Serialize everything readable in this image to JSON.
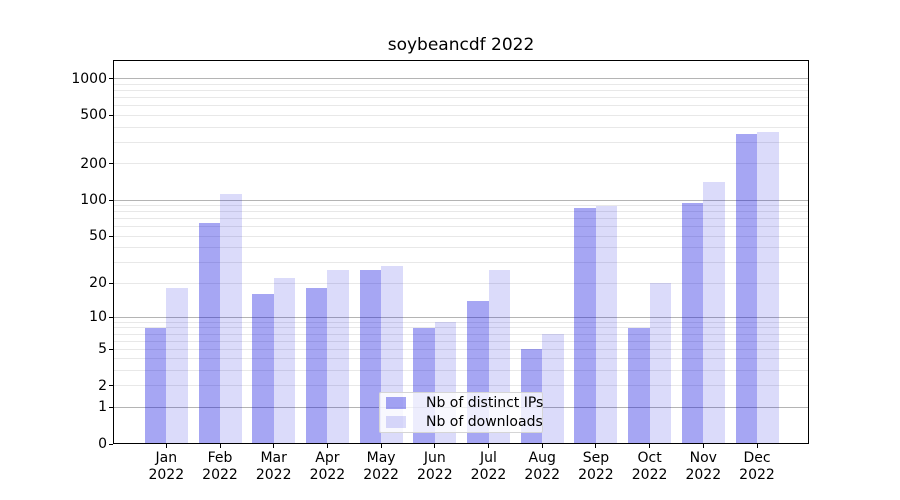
{
  "chart_data": {
    "type": "bar",
    "title": "soybeancdf 2022",
    "categories": [
      "Jan 2022",
      "Feb 2022",
      "Mar 2022",
      "Apr 2022",
      "May 2022",
      "Jun 2022",
      "Jul 2022",
      "Aug 2022",
      "Sep 2022",
      "Oct 2022",
      "Nov 2022",
      "Dec 2022"
    ],
    "series": [
      {
        "key": "distinct-ips",
        "name": "Nb of distinct IPs",
        "color_hex": "#a6a6f3",
        "color_css": "rgba(0,0,221,0.35)",
        "values": [
          8,
          64,
          16,
          18,
          26,
          8,
          14,
          5,
          86,
          8,
          95,
          350
        ]
      },
      {
        "key": "downloads",
        "name": "Nb of downloads",
        "color_hex": "#dcdcf8",
        "color_css": "rgba(0,0,221,0.14)",
        "values": [
          18,
          112,
          22,
          26,
          28,
          9,
          26,
          7,
          90,
          20,
          142,
          367
        ]
      }
    ],
    "xlabel": "",
    "ylabel": "",
    "y_scale": "log10(1+y)",
    "y_ticks": [
      0,
      1,
      2,
      5,
      10,
      20,
      50,
      100,
      200,
      500,
      1000
    ],
    "ylim": [
      0,
      1430
    ],
    "grid": "horizontal; major lines at 1,10,100,1000 (darker), log-minor lines 2-9 per decade (lighter)",
    "legend_position": "inside axes, lower center"
  },
  "axes_style": {
    "major_grid_color": "#b4b4b4",
    "minor_grid_color": "#e8e8e8",
    "spine_color": "#000000",
    "legend_border_color": "#d5d5d5"
  }
}
